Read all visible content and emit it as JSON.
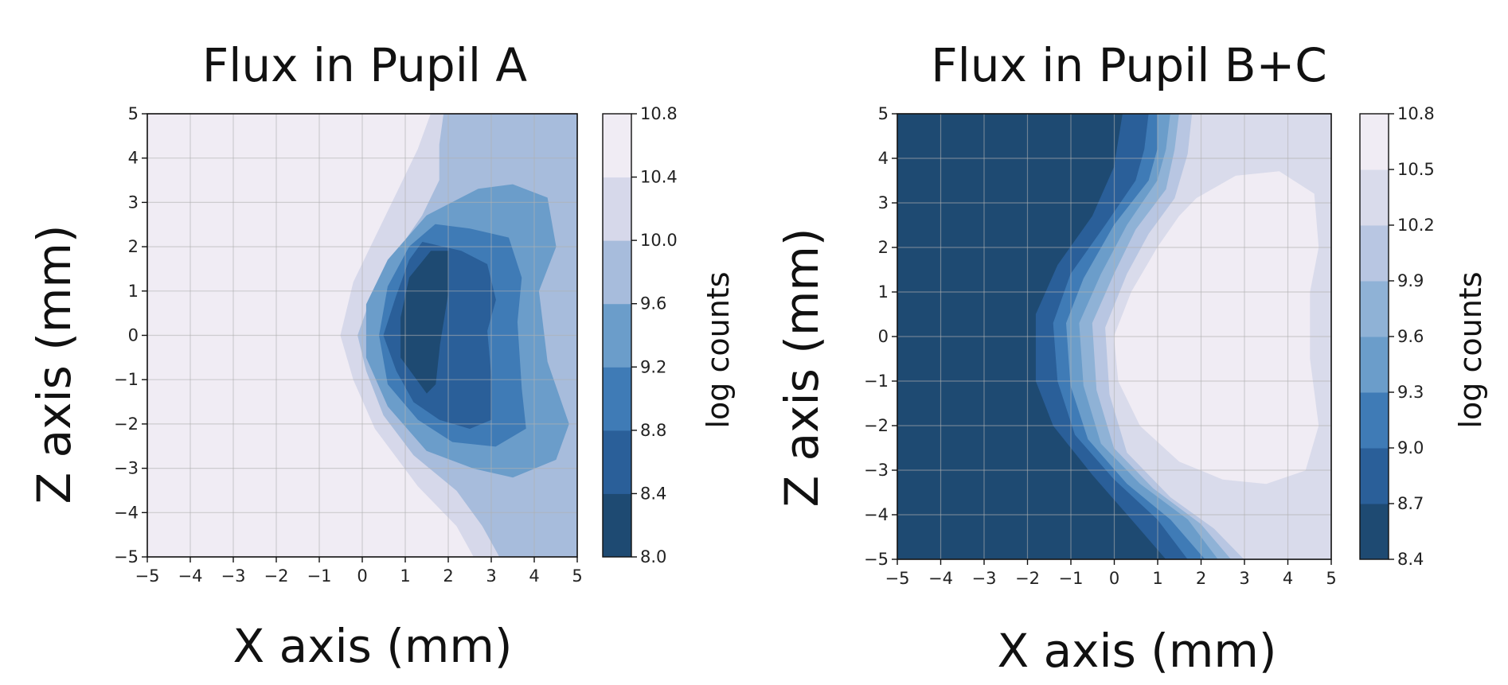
{
  "chart_data": [
    {
      "type": "contour",
      "title": "Flux in Pupil A",
      "xlabel": "X axis (mm)",
      "ylabel": "Z axis (mm)",
      "xlim": [
        -5,
        5
      ],
      "ylim": [
        -5,
        5
      ],
      "xticks": [
        "−5",
        "−4",
        "−3",
        "−2",
        "−1",
        "0",
        "1",
        "2",
        "3",
        "4",
        "5"
      ],
      "yticks": [
        "5",
        "4",
        "3",
        "2",
        "1",
        "0",
        "−1",
        "−2",
        "−3",
        "−4",
        "−5"
      ],
      "grid": true,
      "colorbar": {
        "label": "log counts",
        "ticks": [
          "10.8",
          "10.4",
          "10.0",
          "9.6",
          "9.2",
          "8.8",
          "8.4",
          "8.0"
        ],
        "levels": [
          8.0,
          8.4,
          8.8,
          9.2,
          9.6,
          10.0,
          10.4,
          10.8
        ],
        "colors": [
          "#1e4a72",
          "#2a5f99",
          "#3f7bb6",
          "#6b9dca",
          "#a7bcdc",
          "#d6d8ea",
          "#f0ecf4"
        ]
      },
      "regions": [
        {
          "level_min": 10.4,
          "level_max": 10.8,
          "points": [
            [
              -5,
              5
            ],
            [
              5,
              5
            ],
            [
              5,
              -5
            ],
            [
              -5,
              -5
            ]
          ]
        },
        {
          "level_min": 10.0,
          "level_max": 10.4,
          "points": [
            [
              1.6,
              5
            ],
            [
              5,
              5
            ],
            [
              5,
              -5
            ],
            [
              2.6,
              -5
            ],
            [
              2.2,
              -4.3
            ],
            [
              1.3,
              -3.4
            ],
            [
              0.3,
              -2.1
            ],
            [
              -0.2,
              -1
            ],
            [
              -0.5,
              0
            ],
            [
              -0.2,
              1.2
            ],
            [
              0.3,
              2.2
            ],
            [
              0.8,
              3.2
            ],
            [
              1.3,
              4.2
            ]
          ]
        },
        {
          "level_min": 9.6,
          "level_max": 10.4,
          "points": [
            [
              1.9,
              5
            ],
            [
              5,
              5
            ],
            [
              5,
              -5
            ],
            [
              3.2,
              -5
            ],
            [
              2.8,
              -4.3
            ],
            [
              2.2,
              -3.5
            ],
            [
              1.2,
              -2.7
            ],
            [
              0.5,
              -1.8
            ],
            [
              0.1,
              -0.8
            ],
            [
              -0.1,
              0
            ],
            [
              0.3,
              1.1
            ],
            [
              0.9,
              2
            ],
            [
              1.4,
              2.7
            ],
            [
              1.8,
              3.5
            ],
            [
              1.8,
              4.3
            ]
          ]
        },
        {
          "level_min": 9.2,
          "level_max": 9.6,
          "points": [
            [
              2.7,
              3.3
            ],
            [
              3.5,
              3.4
            ],
            [
              4.3,
              3.1
            ],
            [
              4.5,
              2
            ],
            [
              4.1,
              1
            ],
            [
              4.3,
              -0.6
            ],
            [
              4.8,
              -2
            ],
            [
              4.5,
              -2.8
            ],
            [
              3.5,
              -3.2
            ],
            [
              2.6,
              -3
            ],
            [
              1.5,
              -2.6
            ],
            [
              0.6,
              -1.6
            ],
            [
              0.1,
              -0.5
            ],
            [
              0.1,
              0.7
            ],
            [
              0.6,
              1.7
            ],
            [
              1.5,
              2.7
            ]
          ]
        },
        {
          "level_min": 8.8,
          "level_max": 9.2,
          "points": [
            [
              1.7,
              2.5
            ],
            [
              2.5,
              2.4
            ],
            [
              3.4,
              2.2
            ],
            [
              3.7,
              1.3
            ],
            [
              3.6,
              0.3
            ],
            [
              3.7,
              -1.2
            ],
            [
              3.8,
              -2.1
            ],
            [
              3.1,
              -2.5
            ],
            [
              2.1,
              -2.4
            ],
            [
              1.3,
              -1.9
            ],
            [
              0.6,
              -1.1
            ],
            [
              0.4,
              0
            ],
            [
              0.6,
              1.1
            ],
            [
              1.1,
              2
            ]
          ]
        },
        {
          "level_min": 8.4,
          "level_max": 8.8,
          "points": [
            [
              1.4,
              2.1
            ],
            [
              2.3,
              1.9
            ],
            [
              2.9,
              1.6
            ],
            [
              3.1,
              0.8
            ],
            [
              2.9,
              0.1
            ],
            [
              3,
              -1
            ],
            [
              3,
              -1.9
            ],
            [
              2.5,
              -2.1
            ],
            [
              1.8,
              -1.9
            ],
            [
              1.2,
              -1.5
            ],
            [
              0.8,
              -0.8
            ],
            [
              0.5,
              0
            ],
            [
              0.8,
              0.9
            ],
            [
              1.1,
              1.7
            ]
          ]
        },
        {
          "level_min": 8.0,
          "level_max": 8.4,
          "points": [
            [
              1.6,
              1.9
            ],
            [
              2,
              1.9
            ],
            [
              2,
              1
            ],
            [
              1.8,
              -0.2
            ],
            [
              1.7,
              -1.1
            ],
            [
              1.5,
              -1.3
            ],
            [
              1.2,
              -0.9
            ],
            [
              0.9,
              -0.5
            ],
            [
              0.9,
              0.4
            ],
            [
              1.1,
              1.3
            ]
          ]
        }
      ]
    },
    {
      "type": "contour",
      "title": "Flux in Pupil B+C",
      "xlabel": "X axis (mm)",
      "ylabel": "Z axis (mm)",
      "xlim": [
        -5,
        5
      ],
      "ylim": [
        -5,
        5
      ],
      "xticks": [
        "−5",
        "−4",
        "−3",
        "−2",
        "−1",
        "0",
        "1",
        "2",
        "3",
        "4",
        "5"
      ],
      "yticks": [
        "5",
        "4",
        "3",
        "2",
        "1",
        "0",
        "−1",
        "−2",
        "−3",
        "−4",
        "−5"
      ],
      "grid": true,
      "colorbar": {
        "label": "log counts",
        "ticks": [
          "10.8",
          "10.5",
          "10.2",
          "9.9",
          "9.6",
          "9.3",
          "9.0",
          "8.7",
          "8.4"
        ],
        "levels": [
          8.4,
          8.7,
          9.0,
          9.3,
          9.6,
          9.9,
          10.2,
          10.5,
          10.8
        ],
        "colors": [
          "#1e4a72",
          "#2a5f99",
          "#3f7bb6",
          "#6b9dca",
          "#8fb2d6",
          "#b8c6e2",
          "#d9dbeb",
          "#f0ecf4"
        ]
      },
      "regions": [
        {
          "level_min": 8.4,
          "level_max": 8.7,
          "points": [
            [
              -5,
              5
            ],
            [
              5,
              5
            ],
            [
              5,
              -5
            ],
            [
              -5,
              -5
            ]
          ]
        },
        {
          "level_min": 8.7,
          "level_max": 9.0,
          "points": [
            [
              0.2,
              5
            ],
            [
              5,
              5
            ],
            [
              5,
              -5
            ],
            [
              1.2,
              -5
            ],
            [
              0.4,
              -4.1
            ],
            [
              -0.5,
              -3.1
            ],
            [
              -1.4,
              -2
            ],
            [
              -1.8,
              -1
            ],
            [
              -1.8,
              0.5
            ],
            [
              -1.3,
              1.6
            ],
            [
              -0.5,
              2.7
            ],
            [
              0,
              3.8
            ]
          ]
        },
        {
          "level_min": 9.0,
          "level_max": 9.3,
          "points": [
            [
              0.8,
              5
            ],
            [
              5,
              5
            ],
            [
              5,
              -5
            ],
            [
              1.7,
              -5
            ],
            [
              1,
              -4.1
            ],
            [
              0,
              -3.2
            ],
            [
              -0.9,
              -2.2
            ],
            [
              -1.3,
              -1
            ],
            [
              -1.4,
              0.3
            ],
            [
              -1,
              1.4
            ],
            [
              -0.2,
              2.5
            ],
            [
              0.5,
              3.5
            ],
            [
              0.7,
              4.2
            ]
          ]
        },
        {
          "level_min": 9.3,
          "level_max": 9.6,
          "points": [
            [
              1,
              5
            ],
            [
              5,
              5
            ],
            [
              5,
              -5
            ],
            [
              2.1,
              -5
            ],
            [
              1.3,
              -4.1
            ],
            [
              0.3,
              -3.3
            ],
            [
              -0.6,
              -2.3
            ],
            [
              -1,
              -1.1
            ],
            [
              -1.1,
              0.3
            ],
            [
              -0.7,
              1.3
            ],
            [
              0,
              2.5
            ],
            [
              0.8,
              3.5
            ],
            [
              1,
              4.2
            ]
          ]
        },
        {
          "level_min": 9.6,
          "level_max": 9.9,
          "points": [
            [
              1.3,
              5
            ],
            [
              5,
              5
            ],
            [
              5,
              -5
            ],
            [
              2.4,
              -5
            ],
            [
              1.7,
              -4.1
            ],
            [
              0.6,
              -3.3
            ],
            [
              -0.3,
              -2.4
            ],
            [
              -0.7,
              -1.1
            ],
            [
              -0.8,
              0.3
            ],
            [
              -0.3,
              1.4
            ],
            [
              0.3,
              2.5
            ],
            [
              1,
              3.5
            ],
            [
              1.2,
              4.2
            ]
          ]
        },
        {
          "level_min": 9.9,
          "level_max": 10.2,
          "points": [
            [
              1.5,
              5
            ],
            [
              5,
              5
            ],
            [
              5,
              -5
            ],
            [
              2.7,
              -5
            ],
            [
              2,
              -4.2
            ],
            [
              0.9,
              -3.4
            ],
            [
              0,
              -2.5
            ],
            [
              -0.4,
              -1.2
            ],
            [
              -0.5,
              0.3
            ],
            [
              0,
              1.4
            ],
            [
              0.5,
              2.4
            ],
            [
              1.2,
              3.3
            ],
            [
              1.4,
              4.2
            ]
          ]
        },
        {
          "level_min": 10.2,
          "level_max": 10.5,
          "points": [
            [
              1.8,
              5
            ],
            [
              5,
              5
            ],
            [
              5,
              -5
            ],
            [
              3,
              -5
            ],
            [
              2.3,
              -4.3
            ],
            [
              1.3,
              -3.6
            ],
            [
              0.3,
              -2.6
            ],
            [
              -0.1,
              -1.3
            ],
            [
              -0.2,
              0.2
            ],
            [
              0.3,
              1.4
            ],
            [
              0.8,
              2.3
            ],
            [
              1.4,
              3.1
            ],
            [
              1.7,
              4.1
            ]
          ]
        },
        {
          "level_min": 10.5,
          "level_max": 10.8,
          "points": [
            [
              1.9,
              3.1
            ],
            [
              2.8,
              3.6
            ],
            [
              3.8,
              3.7
            ],
            [
              4.6,
              3.2
            ],
            [
              4.7,
              2
            ],
            [
              4.5,
              1
            ],
            [
              4.5,
              -0.5
            ],
            [
              4.7,
              -2
            ],
            [
              4.4,
              -3
            ],
            [
              3.5,
              -3.3
            ],
            [
              2.5,
              -3.2
            ],
            [
              1.5,
              -2.8
            ],
            [
              0.6,
              -2
            ],
            [
              0.1,
              -1
            ],
            [
              0,
              0
            ],
            [
              0.4,
              1
            ],
            [
              1,
              2
            ],
            [
              1.5,
              2.7
            ]
          ]
        },
        {
          "level_min": 10.2,
          "level_max": 10.5,
          "points": [
            [
              5,
              0.9
            ],
            [
              5,
              -0.7
            ],
            [
              4.75,
              -0.2
            ],
            [
              4.75,
              0.3
            ]
          ]
        }
      ]
    }
  ]
}
